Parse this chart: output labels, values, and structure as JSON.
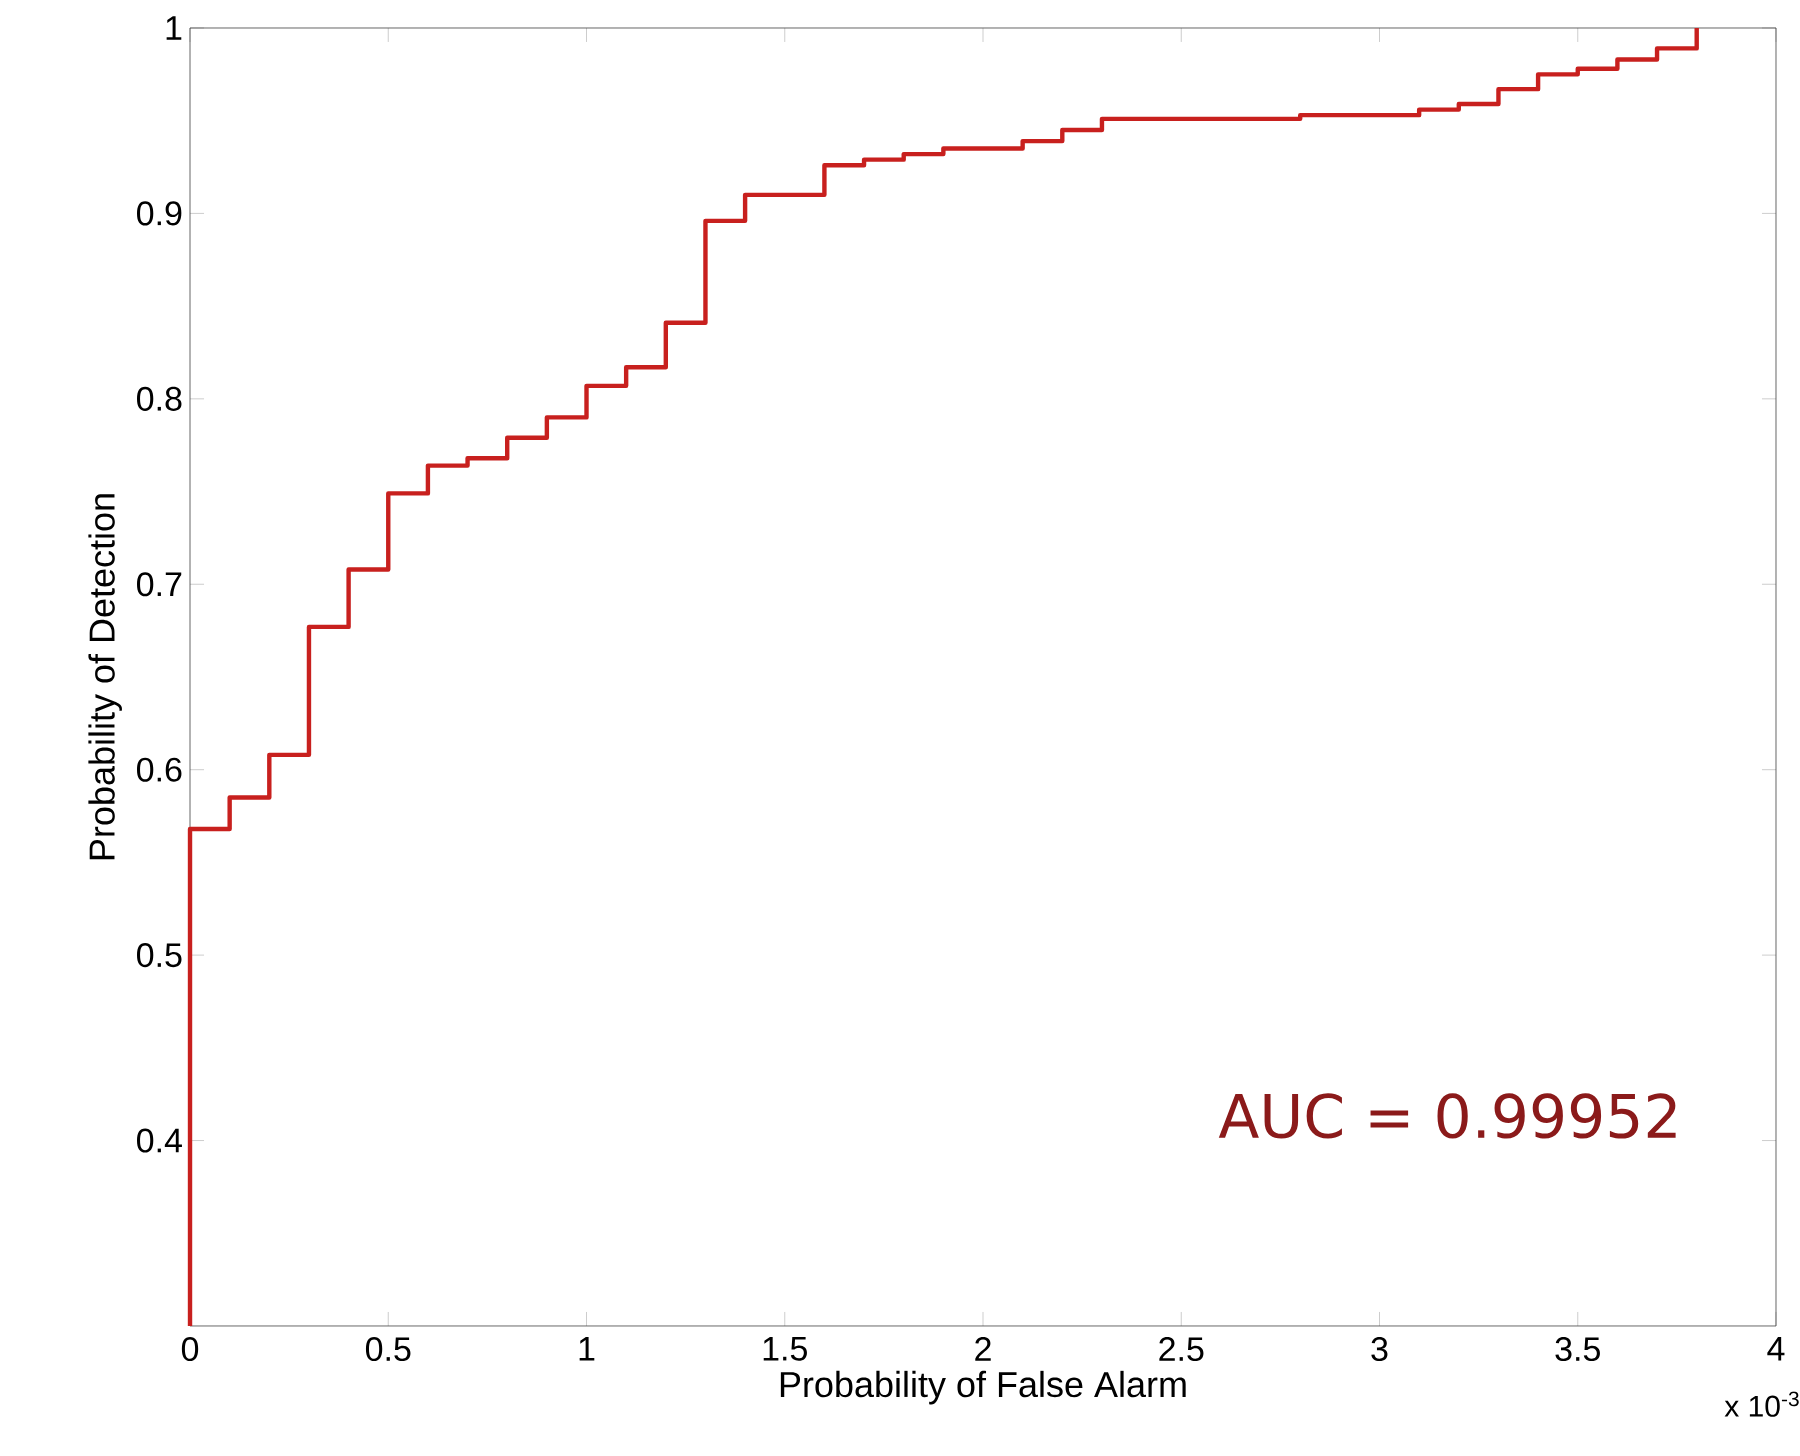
{
  "chart_data": {
    "type": "step",
    "xlabel": "Probability of False Alarm",
    "ylabel": "Probability of Detection",
    "x": [
      0,
      0,
      0.1,
      0.2,
      0.3,
      0.4,
      0.5,
      0.6,
      0.7,
      0.8,
      0.9,
      1.0,
      1.1,
      1.2,
      1.3,
      1.4,
      1.6,
      1.7,
      1.8,
      1.9,
      2.1,
      2.2,
      2.3,
      2.8,
      3.1,
      3.2,
      3.3,
      3.4,
      3.5,
      3.6,
      3.7,
      3.8
    ],
    "series": [
      {
        "color": "#c8201e",
        "values": [
          0.3,
          0.568,
          0.585,
          0.608,
          0.677,
          0.708,
          0.749,
          0.764,
          0.768,
          0.779,
          0.79,
          0.807,
          0.817,
          0.841,
          0.896,
          0.91,
          0.926,
          0.929,
          0.932,
          0.935,
          0.939,
          0.945,
          0.951,
          0.953,
          0.956,
          0.959,
          0.967,
          0.975,
          0.978,
          0.983,
          0.989,
          1
        ]
      }
    ],
    "xlim": [
      0,
      4
    ],
    "ylim": [
      0.3,
      1
    ],
    "xticks": [
      0,
      0.5,
      1,
      1.5,
      2,
      2.5,
      3,
      3.5,
      4
    ],
    "yticks": [
      0.4,
      0.5,
      0.6,
      0.7,
      0.8,
      0.9,
      1
    ],
    "annotations": [
      "x 10$^{-3}$",
      "AUC = 0.99952"
    ],
    "grid": false,
    "marker": "none",
    "line_style": "solid"
  }
}
